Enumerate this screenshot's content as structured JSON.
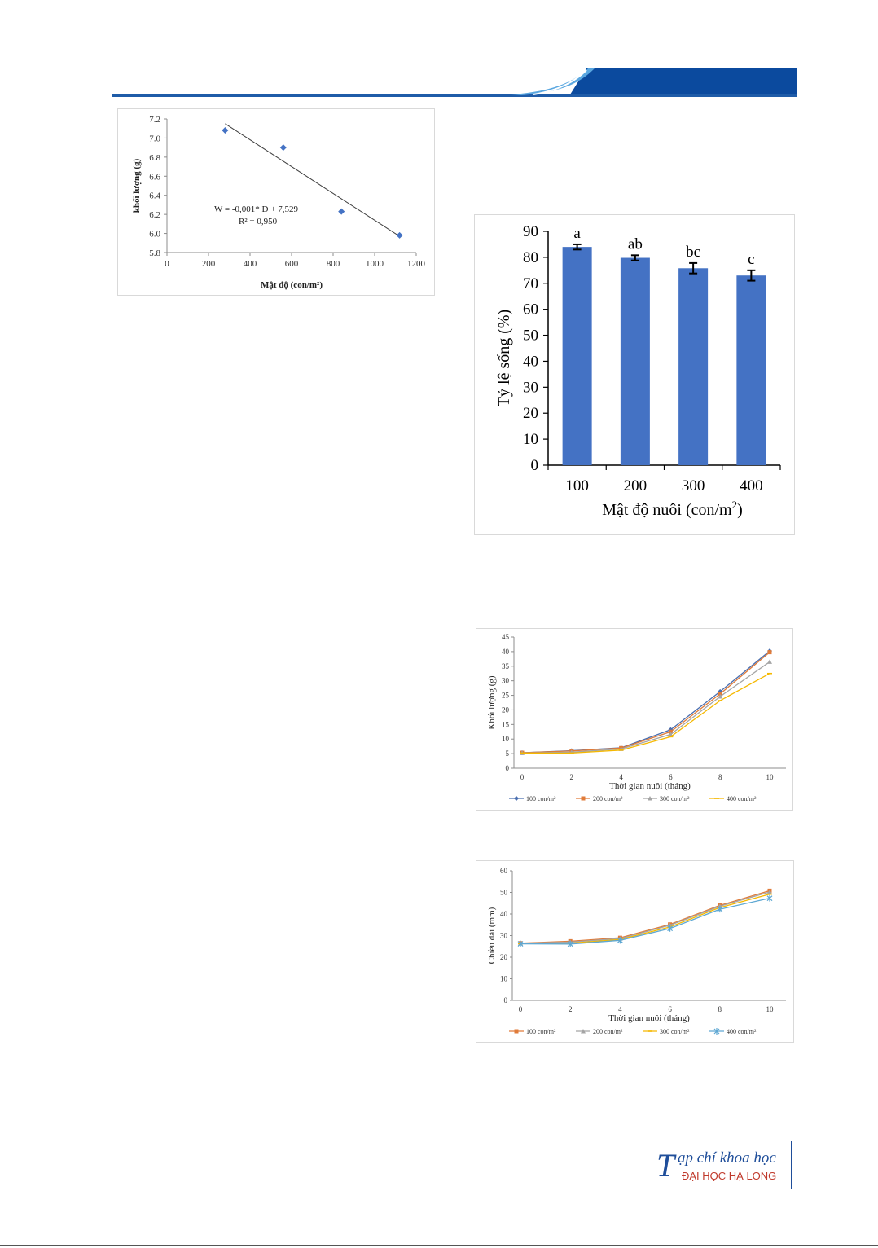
{
  "header": {
    "accent": "#1f5ca8",
    "accent_dark": "#0b3d8c"
  },
  "logo": {
    "big_letter": "T",
    "line1": "ạp chí khoa học",
    "line2": "ĐẠI HỌC HẠ LONG"
  },
  "charts": {
    "scatter": {
      "chart_data": {
        "type": "scatter",
        "x": [
          280,
          560,
          840,
          1120
        ],
        "y": [
          7.08,
          6.9,
          6.23,
          5.98
        ],
        "xlabel": "Mật độ (con/m²)",
        "ylabel": "khối lượng (g)",
        "xlim": [
          0,
          1200
        ],
        "ylim": [
          5.8,
          7.2
        ],
        "xticks": [
          "0",
          "200",
          "400",
          "600",
          "800",
          "1000",
          "1200"
        ],
        "yticks": [
          "5.8",
          "6.0",
          "6.2",
          "6.4",
          "6.6",
          "6.8",
          "7.0",
          "7.2"
        ],
        "trendline": {
          "x": [
            280,
            1120
          ],
          "y": [
            7.15,
            5.97
          ]
        },
        "annotation_line1": "W = -0,001* D + 7,529",
        "annotation_line2": "R² = 0,950",
        "marker_color": "#4472c4"
      }
    },
    "bar": {
      "chart_data": {
        "type": "bar",
        "categories": [
          "100",
          "200",
          "300",
          "400"
        ],
        "values": [
          84.0,
          79.8,
          75.8,
          73.0
        ],
        "errors": [
          1.0,
          1.0,
          2.0,
          2.0
        ],
        "letters": [
          "a",
          "ab",
          "bc",
          "c"
        ],
        "xlabel_main": "Mật độ nuôi (con/m",
        "xlabel_sup": "2",
        "xlabel_end": ")",
        "ylabel": "Tỷ lệ sống (%)",
        "ylim": [
          0,
          90
        ],
        "yticks": [
          "0",
          "10",
          "20",
          "30",
          "40",
          "50",
          "60",
          "70",
          "80",
          "90"
        ],
        "bar_color": "#4472c4"
      }
    },
    "weight": {
      "chart_data": {
        "type": "line",
        "x": [
          0,
          2,
          4,
          6,
          8,
          10
        ],
        "xticks": [
          "0",
          "2",
          "4",
          "6",
          "8",
          "10"
        ],
        "yticks": [
          "0",
          "5",
          "10",
          "15",
          "20",
          "25",
          "30",
          "35",
          "40",
          "45"
        ],
        "ylim": [
          0,
          45
        ],
        "xlabel": "Thời gian nuôi (tháng)",
        "ylabel": "Khối lượng (g)",
        "series": [
          {
            "name": "100 con/m²",
            "color": "#4a6fb0",
            "marker": "diamond",
            "values": [
              5.3,
              6.0,
              7.0,
              13.2,
              26.3,
              40.2
            ]
          },
          {
            "name": "200 con/m²",
            "color": "#e07b39",
            "marker": "square",
            "values": [
              5.3,
              5.9,
              6.9,
              12.5,
              25.5,
              39.8
            ]
          },
          {
            "name": "300 con/m²",
            "color": "#a5a5a5",
            "marker": "triangle",
            "values": [
              5.2,
              5.5,
              6.6,
              11.6,
              24.6,
              36.5
            ]
          },
          {
            "name": "400 con/m²",
            "color": "#f5b800",
            "marker": "dash",
            "values": [
              5.2,
              5.2,
              6.2,
              10.8,
              23.2,
              32.5
            ]
          }
        ]
      }
    },
    "length": {
      "chart_data": {
        "type": "line",
        "x": [
          0,
          2,
          4,
          6,
          8,
          10
        ],
        "xticks": [
          "0",
          "2",
          "4",
          "6",
          "8",
          "10"
        ],
        "yticks": [
          "0",
          "10",
          "20",
          "30",
          "40",
          "50",
          "60"
        ],
        "ylim": [
          0,
          60
        ],
        "xlabel": "Thời gian nuôi (tháng)",
        "ylabel": "Chiều dài (mm)",
        "series": [
          {
            "name": "100 con/m²",
            "color": "#e07b39",
            "marker": "square",
            "values": [
              26.5,
              27.4,
              29.0,
              35.2,
              44.0,
              50.8
            ]
          },
          {
            "name": "200 con/m²",
            "color": "#a5a5a5",
            "marker": "triangle",
            "values": [
              26.4,
              27.0,
              28.6,
              34.8,
              43.6,
              50.2
            ]
          },
          {
            "name": "300 con/m²",
            "color": "#f5b800",
            "marker": "dash",
            "values": [
              26.3,
              26.5,
              28.2,
              34.0,
              43.0,
              49.2
            ]
          },
          {
            "name": "400 con/m²",
            "color": "#5fa8d3",
            "marker": "star",
            "values": [
              26.2,
              26.1,
              27.8,
              33.3,
              42.2,
              47.3
            ]
          }
        ]
      }
    }
  }
}
